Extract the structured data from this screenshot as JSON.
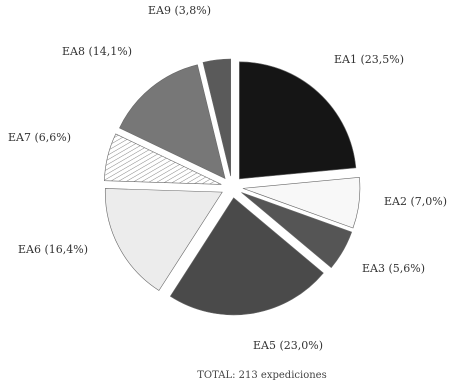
{
  "chart_data": {
    "type": "pie",
    "exploded": true,
    "start": "12 o'clock, clockwise",
    "slices": [
      {
        "label": "EA1 (23,5%)",
        "value": 23.5,
        "fill": "#151515"
      },
      {
        "label": "EA2 (7,0%)",
        "value": 7.0,
        "fill": "#f8f8f8"
      },
      {
        "label": "EA3 (5,6%)",
        "value": 5.6,
        "fill": "#555555"
      },
      {
        "label": "EA5 (23,0%)",
        "value": 23.0,
        "fill": "#4a4a4a"
      },
      {
        "label": "EA6 (16,4%)",
        "value": 16.4,
        "fill": "#ececec"
      },
      {
        "label": "EA7 (6,6%)",
        "value": 6.6,
        "fill": "#dcdcdc"
      },
      {
        "label": "EA8 (14,1%)",
        "value": 14.1,
        "fill": "#777777"
      },
      {
        "label": "EA9 (3,8%)",
        "value": 3.8,
        "fill": "#5a5a5a"
      }
    ],
    "footer": "TOTAL: 213 expediciones"
  }
}
